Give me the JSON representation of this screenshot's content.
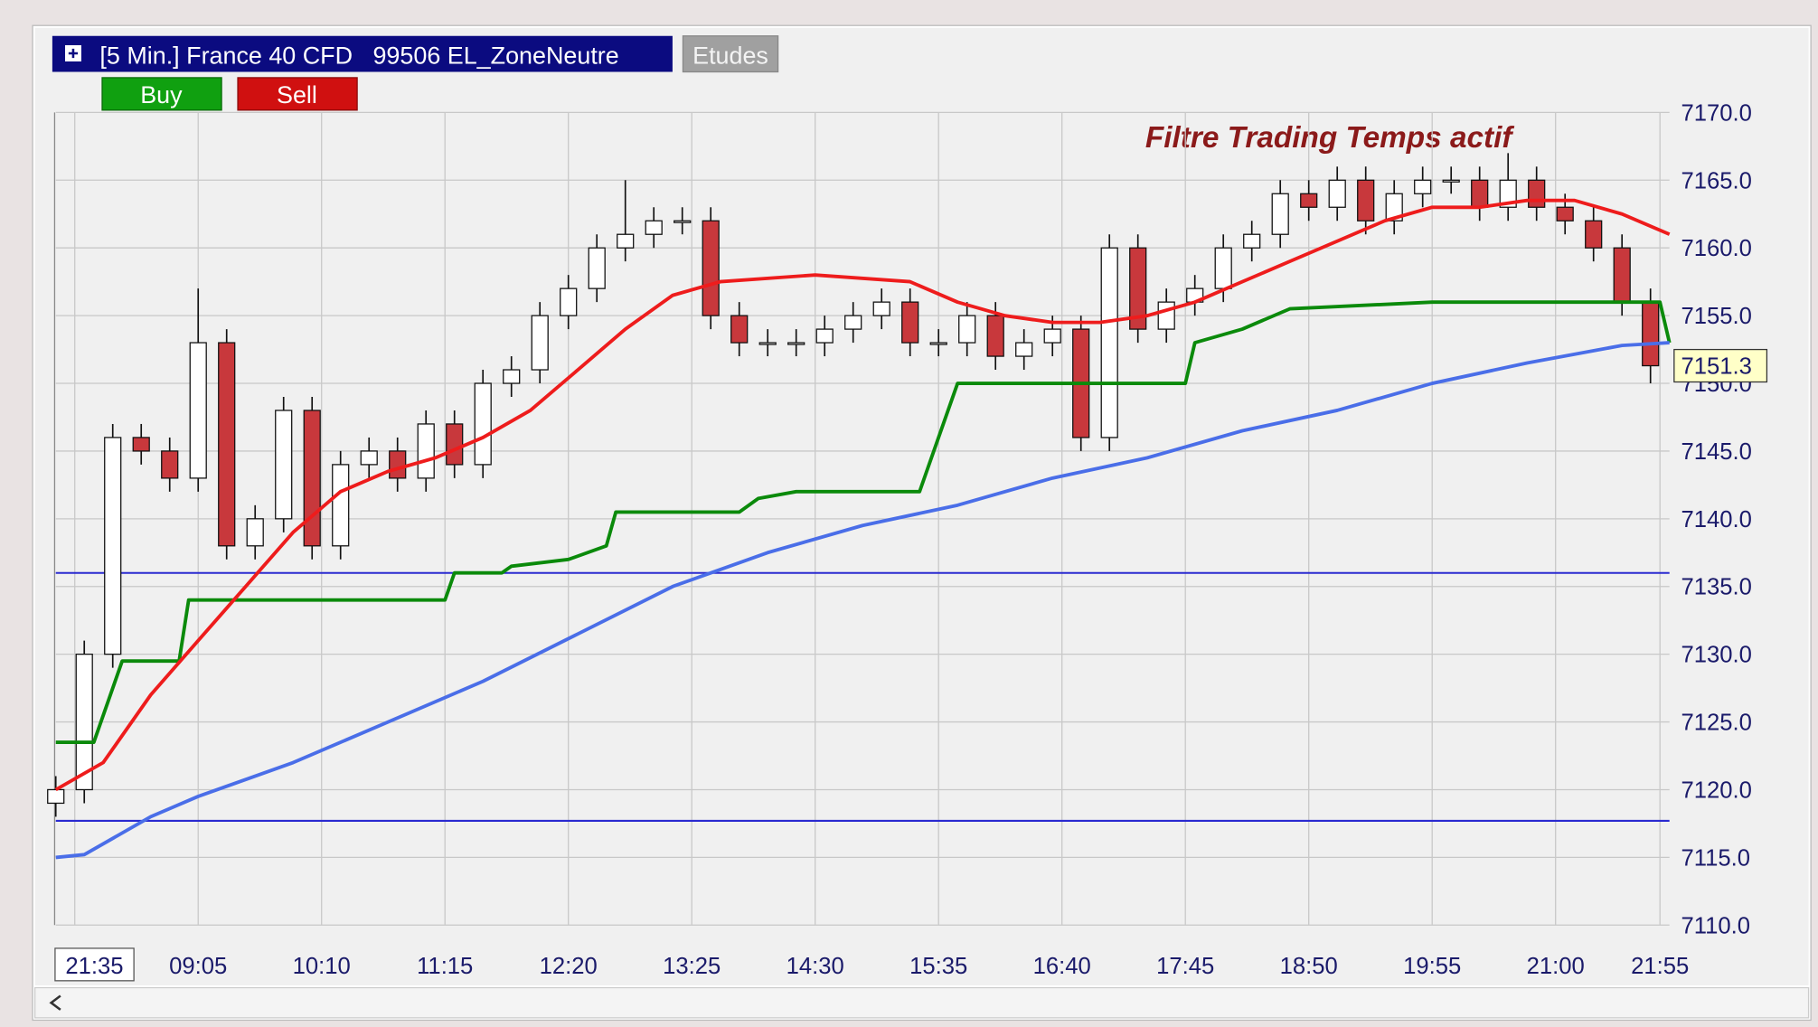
{
  "chart_data": {
    "type": "candlestick",
    "title": "[5 Min.] France 40 CFD   99506 EL_ZoneNeutre",
    "studies_button": "Etudes",
    "buy_button": "Buy",
    "sell_button": "Sell",
    "annotation": "Filtre Trading Temps actif",
    "xlim": [
      0,
      170
    ],
    "ylim": [
      7110,
      7170
    ],
    "grid": true,
    "xticks": [
      {
        "value": 2,
        "label": "21:35"
      },
      {
        "value": 15,
        "label": "09:05"
      },
      {
        "value": 28,
        "label": "10:10"
      },
      {
        "value": 41,
        "label": "11:15"
      },
      {
        "value": 54,
        "label": "12:20"
      },
      {
        "value": 67,
        "label": "13:25"
      },
      {
        "value": 80,
        "label": "14:30"
      },
      {
        "value": 93,
        "label": "15:35"
      },
      {
        "value": 106,
        "label": "16:40"
      },
      {
        "value": 119,
        "label": "17:45"
      },
      {
        "value": 132,
        "label": "18:50"
      },
      {
        "value": 145,
        "label": "19:55"
      },
      {
        "value": 158,
        "label": "21:00"
      },
      {
        "value": 169,
        "label": "21:55"
      }
    ],
    "yticks": [
      {
        "value": 7110,
        "label": "7110.0"
      },
      {
        "value": 7115,
        "label": "7115.0"
      },
      {
        "value": 7120,
        "label": "7120.0"
      },
      {
        "value": 7125,
        "label": "7125.0"
      },
      {
        "value": 7130,
        "label": "7130.0"
      },
      {
        "value": 7135,
        "label": "7135.0"
      },
      {
        "value": 7140,
        "label": "7140.0"
      },
      {
        "value": 7145,
        "label": "7145.0"
      },
      {
        "value": 7150,
        "label": "7150.0"
      },
      {
        "value": 7155,
        "label": "7155.0"
      },
      {
        "value": 7160,
        "label": "7160.0"
      },
      {
        "value": 7165,
        "label": "7165.0"
      },
      {
        "value": 7170,
        "label": "7170.0"
      }
    ],
    "candles": {
      "up_color": "#ffffff",
      "down_color": "#c8383c",
      "x": [
        0,
        3,
        6,
        9,
        12,
        15,
        18,
        21,
        24,
        27,
        30,
        33,
        36,
        39,
        42,
        45,
        48,
        51,
        54,
        57,
        60,
        63,
        66,
        69,
        72,
        75,
        78,
        81,
        84,
        87,
        90,
        93,
        96,
        99,
        102,
        105,
        108,
        111,
        114,
        117,
        120,
        123,
        126,
        129,
        132,
        135,
        138,
        141,
        144,
        147,
        150,
        153,
        156,
        159,
        162,
        165,
        168
      ],
      "open": [
        7119,
        7120,
        7130,
        7146,
        7145,
        7143,
        7153,
        7138,
        7140,
        7148,
        7138,
        7144,
        7145,
        7143,
        7147,
        7144,
        7150,
        7151,
        7155,
        7157,
        7160,
        7161,
        7162,
        7162,
        7155,
        7153,
        7153,
        7153,
        7154,
        7155,
        7156,
        7153,
        7153,
        7155,
        7152,
        7153,
        7154,
        7146,
        7160,
        7154,
        7156,
        7157,
        7160,
        7161,
        7164,
        7163,
        7165,
        7162,
        7164,
        7165,
        7165,
        7163,
        7165,
        7163,
        7162,
        7160,
        7156
      ],
      "high": [
        7121,
        7131,
        7147,
        7147,
        7146,
        7157,
        7154,
        7141,
        7149,
        7149,
        7145,
        7146,
        7146,
        7148,
        7148,
        7151,
        7152,
        7156,
        7158,
        7161,
        7165,
        7163,
        7163,
        7163,
        7156,
        7154,
        7154,
        7155,
        7156,
        7157,
        7157,
        7154,
        7156,
        7156,
        7154,
        7155,
        7155,
        7161,
        7161,
        7157,
        7158,
        7161,
        7162,
        7165,
        7165,
        7166,
        7166,
        7165,
        7166,
        7166,
        7166,
        7167,
        7166,
        7164,
        7163,
        7161,
        7157
      ],
      "low": [
        7118,
        7119,
        7129,
        7144,
        7142,
        7142,
        7137,
        7137,
        7139,
        7137,
        7137,
        7143,
        7142,
        7142,
        7143,
        7143,
        7149,
        7150,
        7154,
        7156,
        7159,
        7160,
        7161,
        7154,
        7152,
        7152,
        7152,
        7152,
        7153,
        7154,
        7152,
        7152,
        7152,
        7151,
        7151,
        7152,
        7145,
        7145,
        7153,
        7153,
        7155,
        7156,
        7159,
        7160,
        7162,
        7162,
        7161,
        7161,
        7163,
        7164,
        7162,
        7162,
        7162,
        7161,
        7159,
        7155,
        7150
      ],
      "close": [
        7120,
        7130,
        7146,
        7145,
        7143,
        7153,
        7138,
        7140,
        7148,
        7138,
        7144,
        7145,
        7143,
        7147,
        7144,
        7150,
        7151,
        7155,
        7157,
        7160,
        7161,
        7162,
        7162,
        7155,
        7153,
        7153,
        7153,
        7154,
        7155,
        7156,
        7153,
        7153,
        7155,
        7152,
        7153,
        7154,
        7146,
        7160,
        7154,
        7156,
        7157,
        7160,
        7161,
        7164,
        7163,
        7165,
        7162,
        7164,
        7165,
        7165,
        7163,
        7165,
        7163,
        7162,
        7160,
        7156,
        7151.3
      ]
    },
    "series": [
      {
        "color": "#0b8a0b",
        "x": [
          0,
          4,
          7,
          13,
          14,
          41,
          42,
          47,
          48,
          54,
          58,
          59,
          72,
          74,
          78,
          91,
          94,
          95,
          119,
          120,
          125,
          130,
          145,
          160,
          169,
          170
        ],
        "values": [
          7123.5,
          7123.5,
          7129.5,
          7129.5,
          7134,
          7134,
          7136,
          7136,
          7136.5,
          7137,
          7138,
          7140.5,
          7140.5,
          7141.5,
          7142,
          7142,
          7148,
          7150,
          7150,
          7153,
          7154,
          7155.5,
          7156,
          7156,
          7156,
          7153
        ]
      },
      {
        "color": "#ee1c1c",
        "x": [
          0,
          5,
          10,
          15,
          20,
          25,
          30,
          35,
          40,
          45,
          50,
          55,
          60,
          65,
          70,
          80,
          90,
          95,
          100,
          105,
          110,
          115,
          120,
          125,
          130,
          135,
          140,
          145,
          150,
          155,
          160,
          165,
          170
        ],
        "values": [
          7120,
          7122,
          7127,
          7131,
          7135,
          7139,
          7142,
          7143.5,
          7144.5,
          7146,
          7148,
          7151,
          7154,
          7156.5,
          7157.5,
          7158,
          7157.5,
          7156,
          7155,
          7154.5,
          7154.5,
          7155,
          7156,
          7157.5,
          7159,
          7160.5,
          7162,
          7163,
          7163,
          7163.5,
          7163.5,
          7162.5,
          7161
        ]
      },
      {
        "color": "#4a6ee8",
        "x": [
          0,
          3,
          10,
          15,
          25,
          35,
          45,
          55,
          65,
          75,
          85,
          95,
          105,
          115,
          125,
          135,
          145,
          155,
          165,
          170
        ],
        "values": [
          7115,
          7115.2,
          7118,
          7119.5,
          7122,
          7125,
          7128,
          7131.5,
          7135,
          7137.5,
          7139.5,
          7141,
          7143,
          7144.5,
          7146.5,
          7148,
          7150,
          7151.5,
          7152.8,
          7153
        ]
      }
    ],
    "hlines": {
      "color": "#2a2ad0",
      "values": [
        7136,
        7117.7
      ]
    }
  }
}
